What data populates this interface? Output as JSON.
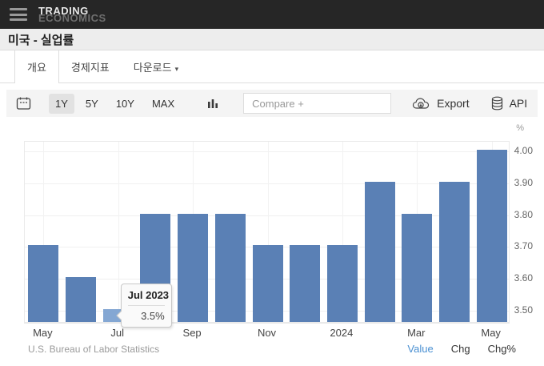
{
  "header": {
    "brand_line1": "TRADING",
    "brand_line2": "ECONOMICS"
  },
  "page": {
    "title": "미국 - 실업률"
  },
  "tabs": {
    "overview": "개요",
    "indicators": "경제지표",
    "download": "다운로드",
    "download_caret": "▾"
  },
  "toolbar": {
    "ranges": {
      "r1": "1Y",
      "r2": "5Y",
      "r3": "10Y",
      "r4": "MAX"
    },
    "active_range": "1Y",
    "compare_placeholder": "Compare +",
    "export_label": "Export",
    "api_label": "API",
    "kebab_glyph": "⋮"
  },
  "chart_data": {
    "type": "bar",
    "unit": "%",
    "x": [
      "May 2023",
      "Jun 2023",
      "Jul 2023",
      "Aug 2023",
      "Sep 2023",
      "Oct 2023",
      "Nov 2023",
      "Dec 2023",
      "Jan 2024",
      "Feb 2024",
      "Mar 2024",
      "Apr 2024",
      "May 2024"
    ],
    "values": [
      3.7,
      3.6,
      3.5,
      3.8,
      3.8,
      3.8,
      3.7,
      3.7,
      3.7,
      3.9,
      3.8,
      3.9,
      4.0
    ],
    "xticks": [
      {
        "index": 0,
        "label": "May"
      },
      {
        "index": 2,
        "label": "Jul"
      },
      {
        "index": 4,
        "label": "Sep"
      },
      {
        "index": 6,
        "label": "Nov"
      },
      {
        "index": 8,
        "label": "2024"
      },
      {
        "index": 10,
        "label": "Mar"
      },
      {
        "index": 12,
        "label": "May"
      }
    ],
    "ytick_labels": [
      "3.50",
      "3.60",
      "3.70",
      "3.80",
      "3.90",
      "4.00"
    ],
    "ylim": [
      3.46,
      4.03
    ],
    "grid": true,
    "legend_position": "none",
    "bar_color": "#5a80b5",
    "bar_hover_color": "#84a7d3",
    "hovered_index": 2,
    "tooltip": {
      "title": "Jul 2023",
      "value": "3.5%"
    },
    "source": "U.S. Bureau of Labor Statistics"
  },
  "footer": {
    "modes": {
      "value": "Value",
      "chg": "Chg",
      "chgpct": "Chg%"
    },
    "active_mode": "Value"
  },
  "colors": {
    "header_bg": "#262626",
    "accent_blue": "#4a90d2",
    "bar": "#5a80b5",
    "bar_hover": "#84a7d3"
  }
}
